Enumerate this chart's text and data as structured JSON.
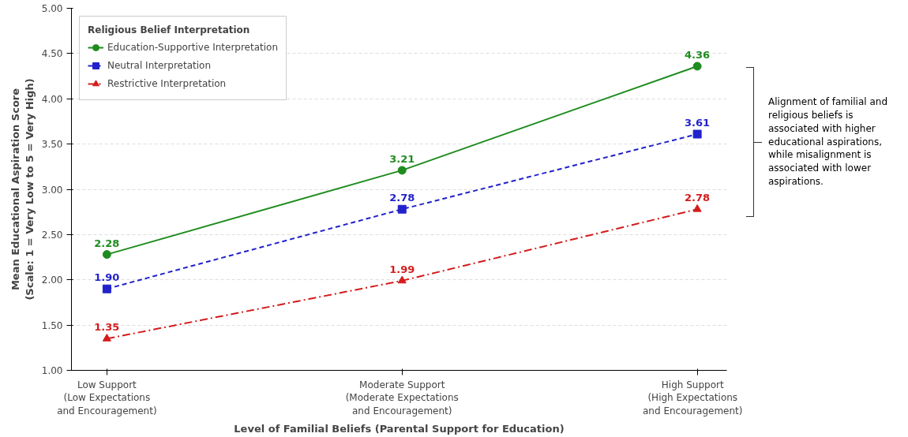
{
  "chart_data": {
    "type": "line",
    "xlabel": "Level of Familial Beliefs (Parental Support for Education)",
    "ylabel": "Mean Educational Aspiration Score\n(Scale: 1 = Very Low to 5 = Very High)",
    "legend_title": "Religious Belief Interpretation",
    "categories": [
      "Low Support\n(Low Expectations\nand Encouragement)",
      "Moderate Support\n(Moderate Expectations\nand Encouragement)",
      "High Support\n(High Expectations\nand Encouragement)"
    ],
    "series": [
      {
        "name": "Education-Supportive Interpretation",
        "color": "#1e8c1e",
        "values": [
          2.28,
          3.21,
          4.36
        ],
        "value_labels": [
          "2.28",
          "3.21",
          "4.36"
        ],
        "marker": "circle",
        "line_style": "solid"
      },
      {
        "name": "Neutral Interpretation",
        "color": "#2222cc",
        "values": [
          1.9,
          2.78,
          3.61
        ],
        "value_labels": [
          "1.90",
          "2.78",
          "3.61"
        ],
        "marker": "square",
        "line_style": "dashed"
      },
      {
        "name": "Restrictive Interpretation",
        "color": "#d41c1c",
        "values": [
          1.35,
          1.99,
          2.78
        ],
        "value_labels": [
          "1.35",
          "1.99",
          "2.78"
        ],
        "marker": "triangle",
        "line_style": "dashdot"
      }
    ],
    "ylim": [
      1.0,
      5.0
    ],
    "yticks": [
      {
        "value": 1.0,
        "label": "1.00"
      },
      {
        "value": 1.5,
        "label": "1.50"
      },
      {
        "value": 2.0,
        "label": "2.00"
      },
      {
        "value": 2.5,
        "label": "2.50"
      },
      {
        "value": 3.0,
        "label": "3.00"
      },
      {
        "value": 3.5,
        "label": "3.50"
      },
      {
        "value": 4.0,
        "label": "4.00"
      },
      {
        "value": 4.5,
        "label": "4.50"
      },
      {
        "value": 5.0,
        "label": "5.00"
      }
    ],
    "grid": "y",
    "legend": "top left",
    "annotations": [
      "Alignment of familial and religious beliefs is associated with higher educational aspirations, while misalignment is associated with lower aspirations."
    ]
  }
}
